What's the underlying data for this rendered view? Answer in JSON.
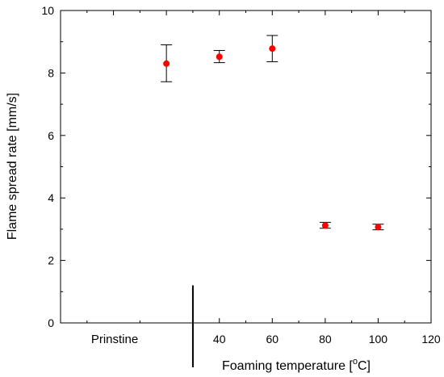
{
  "chart_data": {
    "type": "scatter",
    "xlabel": "Foaming temperature [",
    "xlabel_unit_sup": "o",
    "xlabel_unit": "C]",
    "ylabel": "Flame spread rate [mm/s]",
    "xlim": [
      -20,
      120
    ],
    "ylim": [
      0,
      10
    ],
    "x_ticks": [
      40,
      60,
      80,
      100,
      120
    ],
    "y_ticks": [
      0,
      2,
      4,
      6,
      8,
      10
    ],
    "category_label": "Prinstine",
    "category_x": 20,
    "divider_x": 30,
    "marker_color": "#ff0000",
    "points": [
      {
        "label": "Prinstine",
        "x": 20,
        "y": 8.3,
        "yerr_low": 7.72,
        "yerr_high": 8.9
      },
      {
        "x": 40,
        "y": 8.52,
        "yerr_low": 8.33,
        "yerr_high": 8.72
      },
      {
        "x": 60,
        "y": 8.78,
        "yerr_low": 8.36,
        "yerr_high": 9.2
      },
      {
        "x": 80,
        "y": 3.12,
        "yerr_low": 3.03,
        "yerr_high": 3.22
      },
      {
        "x": 100,
        "y": 3.07,
        "yerr_low": 2.98,
        "yerr_high": 3.16
      }
    ]
  }
}
